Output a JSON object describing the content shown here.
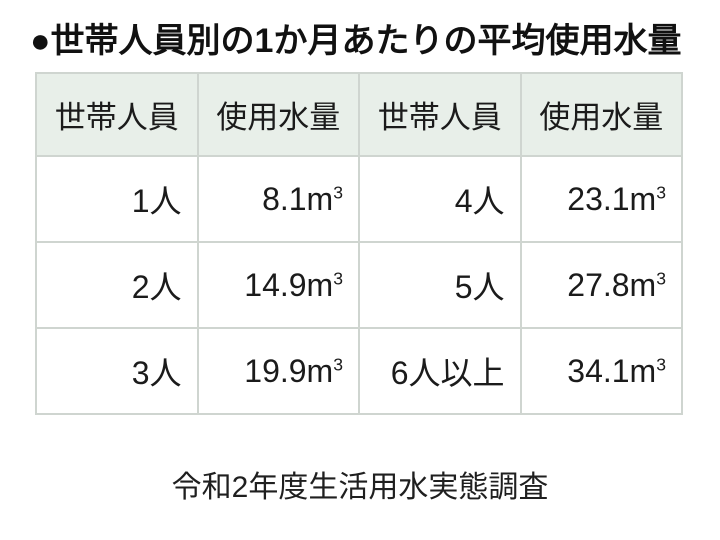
{
  "title": {
    "text": "●世帯人員別の1か月あたりの平均使用水量"
  },
  "table": {
    "headers": [
      "世帯人員",
      "使用水量",
      "世帯人員",
      "使用水量"
    ],
    "unit_base": "m",
    "unit_exponent": "3",
    "rows": [
      {
        "household1": "1人",
        "usage1": "8.1",
        "household2": "4人",
        "usage2": "23.1"
      },
      {
        "household1": "2人",
        "usage1": "14.9",
        "household2": "5人",
        "usage2": "27.8"
      },
      {
        "household1": "3人",
        "usage1": "19.9",
        "household2": "6人以上",
        "usage2": "34.1"
      }
    ]
  },
  "source": {
    "text": "令和2年度生活用水実態調査"
  },
  "colors": {
    "background": "#ffffff",
    "header_bg": "#e8efe9",
    "border": "#cfd5d0",
    "text": "#1b1b1b"
  },
  "chart_data": {
    "type": "table",
    "title": "世帯人員別の1か月あたりの平均使用水量",
    "columns": [
      "世帯人員",
      "使用水量",
      "世帯人員",
      "使用水量"
    ],
    "rows": [
      [
        "1人",
        "8.1m³",
        "4人",
        "23.1m³"
      ],
      [
        "2人",
        "14.9m³",
        "5人",
        "27.8m³"
      ],
      [
        "3人",
        "19.9m³",
        "6人以上",
        "34.1m³"
      ]
    ],
    "values": [
      {
        "household": "1人",
        "usage_m3": 8.1
      },
      {
        "household": "2人",
        "usage_m3": 14.9
      },
      {
        "household": "3人",
        "usage_m3": 19.9
      },
      {
        "household": "4人",
        "usage_m3": 23.1
      },
      {
        "household": "5人",
        "usage_m3": 27.8
      },
      {
        "household": "6人以上",
        "usage_m3": 34.1
      }
    ],
    "unit": "m³",
    "source": "令和2年度生活用水実態調査"
  }
}
